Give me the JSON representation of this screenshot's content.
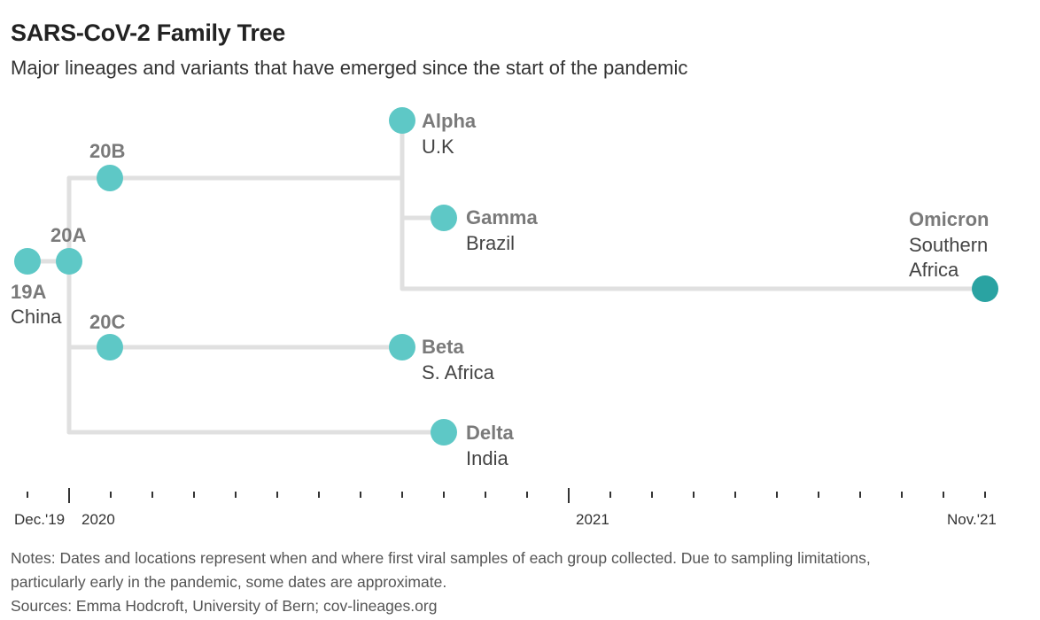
{
  "header": {
    "title": "SARS-CoV-2 Family Tree",
    "subtitle": "Major lineages and variants that have emerged since the start of the pandemic"
  },
  "colors": {
    "node": "#5ec8c6",
    "node_highlight": "#2aa3a2",
    "branch": "#e0e0e0",
    "label": "#7a7a7a"
  },
  "nodes": [
    {
      "id": "19A",
      "name": "19A",
      "location": "China"
    },
    {
      "id": "20A",
      "name": "20A",
      "location": ""
    },
    {
      "id": "20B",
      "name": "20B",
      "location": ""
    },
    {
      "id": "20C",
      "name": "20C",
      "location": ""
    },
    {
      "id": "alpha",
      "name": "Alpha",
      "location": "U.K"
    },
    {
      "id": "gamma",
      "name": "Gamma",
      "location": "Brazil"
    },
    {
      "id": "beta",
      "name": "Beta",
      "location": "S. Africa"
    },
    {
      "id": "delta",
      "name": "Delta",
      "location": "India"
    },
    {
      "id": "omicron",
      "name": "Omicron",
      "location_lines": [
        "Southern",
        "Africa"
      ]
    }
  ],
  "axis": {
    "labels": [
      "Dec.'19",
      "2020",
      "2021",
      "Nov.'21"
    ]
  },
  "footer": {
    "notes_line1": "Notes: Dates and locations represent when and where first viral samples of each group collected. Due to sampling limitations,",
    "notes_line2": "particularly early in the pandemic, some dates are approximate.",
    "sources": "Sources: Emma Hodcroft, University of Bern; cov-lineages.org"
  }
}
